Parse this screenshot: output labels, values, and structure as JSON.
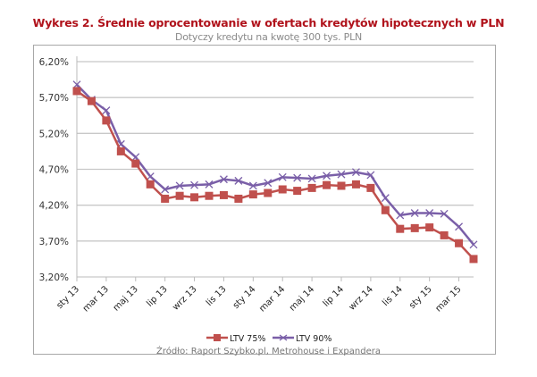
{
  "chart_data": {
    "type": "line",
    "title": "Wykres 2. Średnie oprocentowanie w ofertach kredytów hipotecznych w PLN",
    "subtitle": "Dotyczy kredytu na kwotę 300 tys. PLN",
    "source": "Źródło: Raport Szybko.pl, Metrohouse i Expandera",
    "xlabel": "",
    "ylabel": "",
    "ylim": [
      3.2,
      6.2
    ],
    "yticks": [
      "6,20%",
      "5,70%",
      "5,20%",
      "4,70%",
      "4,20%",
      "3,70%",
      "3,20%"
    ],
    "xtick_labels": [
      "sty 13",
      "mar 13",
      "maj 13",
      "lip 13",
      "wrz 13",
      "lis 13",
      "sty 14",
      "mar 14",
      "maj 14",
      "lip 14",
      "wrz 14",
      "lis 14",
      "sty 15",
      "mar 15"
    ],
    "grid": "horizontal",
    "legend_position": "bottom",
    "series": [
      {
        "name": "LTV 75%",
        "color": "#c0504d",
        "marker": "square",
        "values": [
          5.79,
          5.65,
          5.38,
          4.95,
          4.78,
          4.49,
          4.29,
          4.33,
          4.31,
          4.33,
          4.34,
          4.29,
          4.35,
          4.37,
          4.42,
          4.4,
          4.44,
          4.48,
          4.47,
          4.49,
          4.44,
          4.13,
          3.87,
          3.88,
          3.89,
          3.78,
          3.67,
          3.45
        ]
      },
      {
        "name": "LTV 90%",
        "color": "#7a5fa8",
        "marker": "x",
        "values": [
          5.88,
          5.67,
          5.52,
          5.05,
          4.87,
          4.6,
          4.42,
          4.47,
          4.48,
          4.49,
          4.56,
          4.54,
          4.47,
          4.51,
          4.59,
          4.58,
          4.57,
          4.61,
          4.63,
          4.66,
          4.62,
          4.3,
          4.06,
          4.09,
          4.09,
          4.08,
          3.9,
          3.65
        ]
      }
    ]
  }
}
